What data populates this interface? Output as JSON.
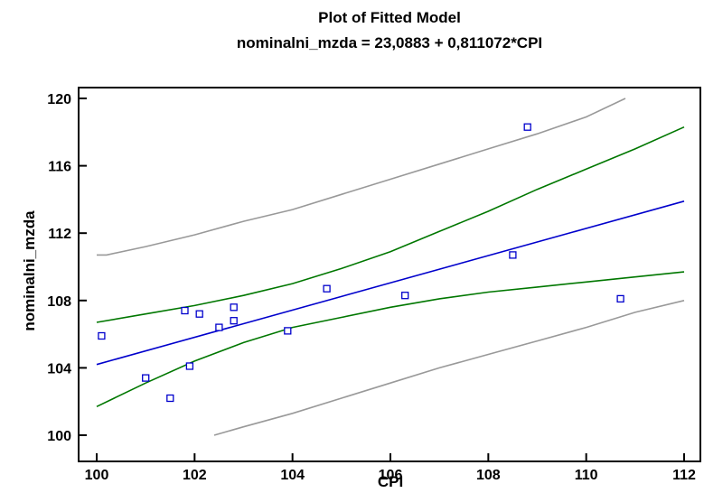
{
  "chart_data": {
    "type": "scatter",
    "title": "Plot of Fitted Model",
    "subtitle": "nominalni_mzda = 23,0883 + 0,811072*CPI",
    "xlabel": "CPI",
    "ylabel": "nominalni_mzda",
    "xlim": [
      100,
      112
    ],
    "ylim": [
      100,
      120
    ],
    "x_ticks": [
      "100",
      "102",
      "104",
      "106",
      "108",
      "110",
      "112"
    ],
    "y_ticks": [
      "100",
      "104",
      "108",
      "112",
      "116",
      "120"
    ],
    "grid": false,
    "points": [
      {
        "x": 100.1,
        "y": 105.9
      },
      {
        "x": 101.0,
        "y": 103.4
      },
      {
        "x": 101.5,
        "y": 102.2
      },
      {
        "x": 101.8,
        "y": 107.4
      },
      {
        "x": 101.9,
        "y": 104.1
      },
      {
        "x": 102.1,
        "y": 107.2
      },
      {
        "x": 102.5,
        "y": 106.4
      },
      {
        "x": 102.8,
        "y": 107.6
      },
      {
        "x": 102.8,
        "y": 106.8
      },
      {
        "x": 103.9,
        "y": 106.2
      },
      {
        "x": 104.7,
        "y": 108.7
      },
      {
        "x": 106.3,
        "y": 108.3
      },
      {
        "x": 108.5,
        "y": 110.7
      },
      {
        "x": 108.8,
        "y": 118.3
      },
      {
        "x": 110.7,
        "y": 108.1
      }
    ],
    "lines": [
      {
        "role": "fitted",
        "color": "#0000cc",
        "x": [
          100,
          112
        ],
        "y": [
          104.2,
          113.9
        ]
      },
      {
        "role": "confidence-upper",
        "color": "#007700",
        "x": [
          100,
          101,
          102,
          103,
          104,
          105,
          106,
          107,
          108,
          109,
          110,
          111,
          112
        ],
        "y": [
          106.7,
          107.2,
          107.7,
          108.3,
          109.0,
          109.9,
          110.9,
          112.1,
          113.3,
          114.6,
          115.8,
          117.0,
          118.3
        ]
      },
      {
        "role": "confidence-lower",
        "color": "#007700",
        "x": [
          100,
          101,
          102,
          103,
          104,
          105,
          106,
          107,
          108,
          109,
          110,
          111,
          112
        ],
        "y": [
          101.7,
          103.1,
          104.4,
          105.5,
          106.4,
          107.0,
          107.6,
          108.1,
          108.5,
          108.8,
          109.1,
          109.4,
          109.7
        ]
      },
      {
        "role": "prediction-upper",
        "color": "#999999",
        "x": [
          100,
          100.2,
          101,
          102,
          103,
          104,
          105,
          106,
          107,
          108,
          109,
          110,
          110.8
        ],
        "y": [
          110.7,
          110.7,
          111.2,
          111.9,
          112.7,
          113.4,
          114.3,
          115.2,
          116.1,
          117.0,
          117.9,
          118.9,
          120.0
        ]
      },
      {
        "role": "prediction-lower",
        "color": "#999999",
        "x": [
          102.4,
          103,
          104,
          105,
          106,
          107,
          108,
          109,
          110,
          111,
          112
        ],
        "y": [
          100.0,
          100.5,
          101.3,
          102.2,
          103.1,
          104.0,
          104.8,
          105.6,
          106.4,
          107.3,
          108.0
        ]
      }
    ],
    "colors": {
      "points": "#0000cc",
      "frame": "#000000"
    }
  }
}
